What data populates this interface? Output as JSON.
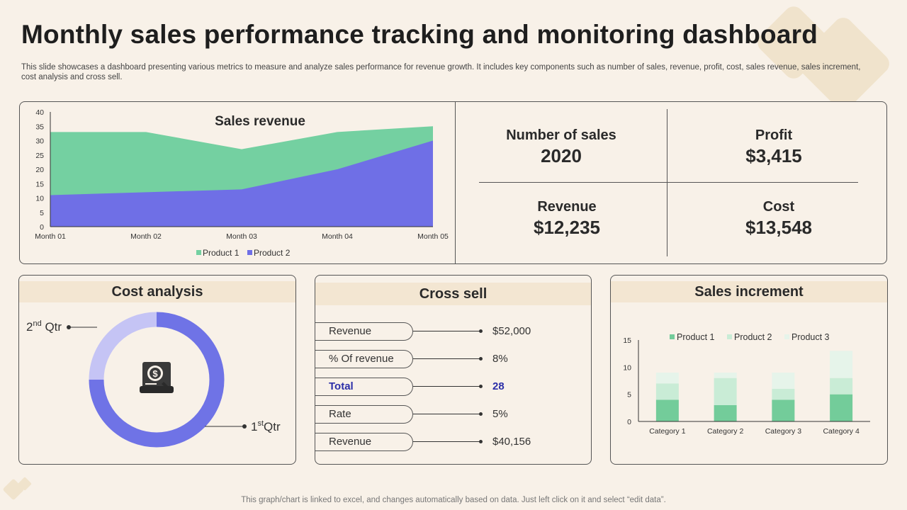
{
  "page": {
    "title": "Monthly sales performance tracking and monitoring dashboard",
    "subtitle": "This slide showcases a dashboard presenting various metrics to measure and analyze sales performance for revenue growth. It includes key components such as number of sales, revenue, profit, cost, sales revenue, sales increment, cost analysis and cross sell.",
    "footer": "This graph/chart is linked to excel, and changes automatically based on data. Just left click on it and select “edit data”."
  },
  "kpis": {
    "sales_label": "Number of sales",
    "sales_value": "2020",
    "profit_label": "Profit",
    "profit_value": "$3,415",
    "revenue_label": "Revenue",
    "revenue_value": "$12,235",
    "cost_label": "Cost",
    "cost_value": "$13,548"
  },
  "cost_analysis": {
    "title": "Cost analysis",
    "icon": "money-document-icon",
    "q2_main": "2",
    "q2_sup": "nd",
    "q2_rest": " Qtr",
    "q1_main": "1",
    "q1_sup": "st",
    "q1_rest": "Qtr",
    "colors": {
      "q1": "#6f73e6",
      "q2": "#c5c4f5"
    }
  },
  "cross_sell": {
    "title": "Cross sell",
    "rows": [
      {
        "label": "Revenue",
        "value": "$52,000"
      },
      {
        "label": "% Of revenue",
        "value": "8%"
      },
      {
        "label": "Total",
        "value": "28"
      },
      {
        "label": "Rate",
        "value": "5%"
      },
      {
        "label": "Revenue",
        "value": "$40,156"
      }
    ]
  },
  "sales_increment": {
    "title": "Sales increment"
  },
  "chart_data": [
    {
      "type": "area",
      "title": "Sales revenue",
      "categories": [
        "Month 01",
        "Month 02",
        "Month 03",
        "Month 04",
        "Month 05"
      ],
      "series": [
        {
          "name": "Product 1",
          "values": [
            33,
            33,
            27,
            33,
            35
          ],
          "color": "#74d0a1"
        },
        {
          "name": "Product 2",
          "values": [
            11,
            12,
            13,
            20,
            30
          ],
          "color": "#6f6fe6"
        }
      ],
      "ylim": [
        0,
        40
      ],
      "yticks": [
        0,
        5,
        10,
        15,
        20,
        25,
        30,
        35,
        40
      ],
      "legend": "bottom"
    },
    {
      "type": "pie",
      "title": "Cost analysis",
      "labels": [
        "1st Qtr",
        "2nd Qtr"
      ],
      "values": [
        75,
        25
      ]
    },
    {
      "type": "bar",
      "title": "Sales increment",
      "stacked": true,
      "categories": [
        "Category 1",
        "Category 2",
        "Category 3",
        "Category 4"
      ],
      "series": [
        {
          "name": "Product 1",
          "values": [
            4,
            3,
            4,
            5
          ],
          "color": "#73cc9a"
        },
        {
          "name": "Product 2",
          "values": [
            3,
            5,
            2,
            3
          ],
          "color": "#c9ecd6"
        },
        {
          "name": "Product 3",
          "values": [
            2,
            1,
            3,
            5
          ],
          "color": "#e6f4ea"
        }
      ],
      "ylim": [
        0,
        15
      ],
      "yticks": [
        0,
        5,
        10,
        15
      ],
      "legend": "top"
    }
  ]
}
